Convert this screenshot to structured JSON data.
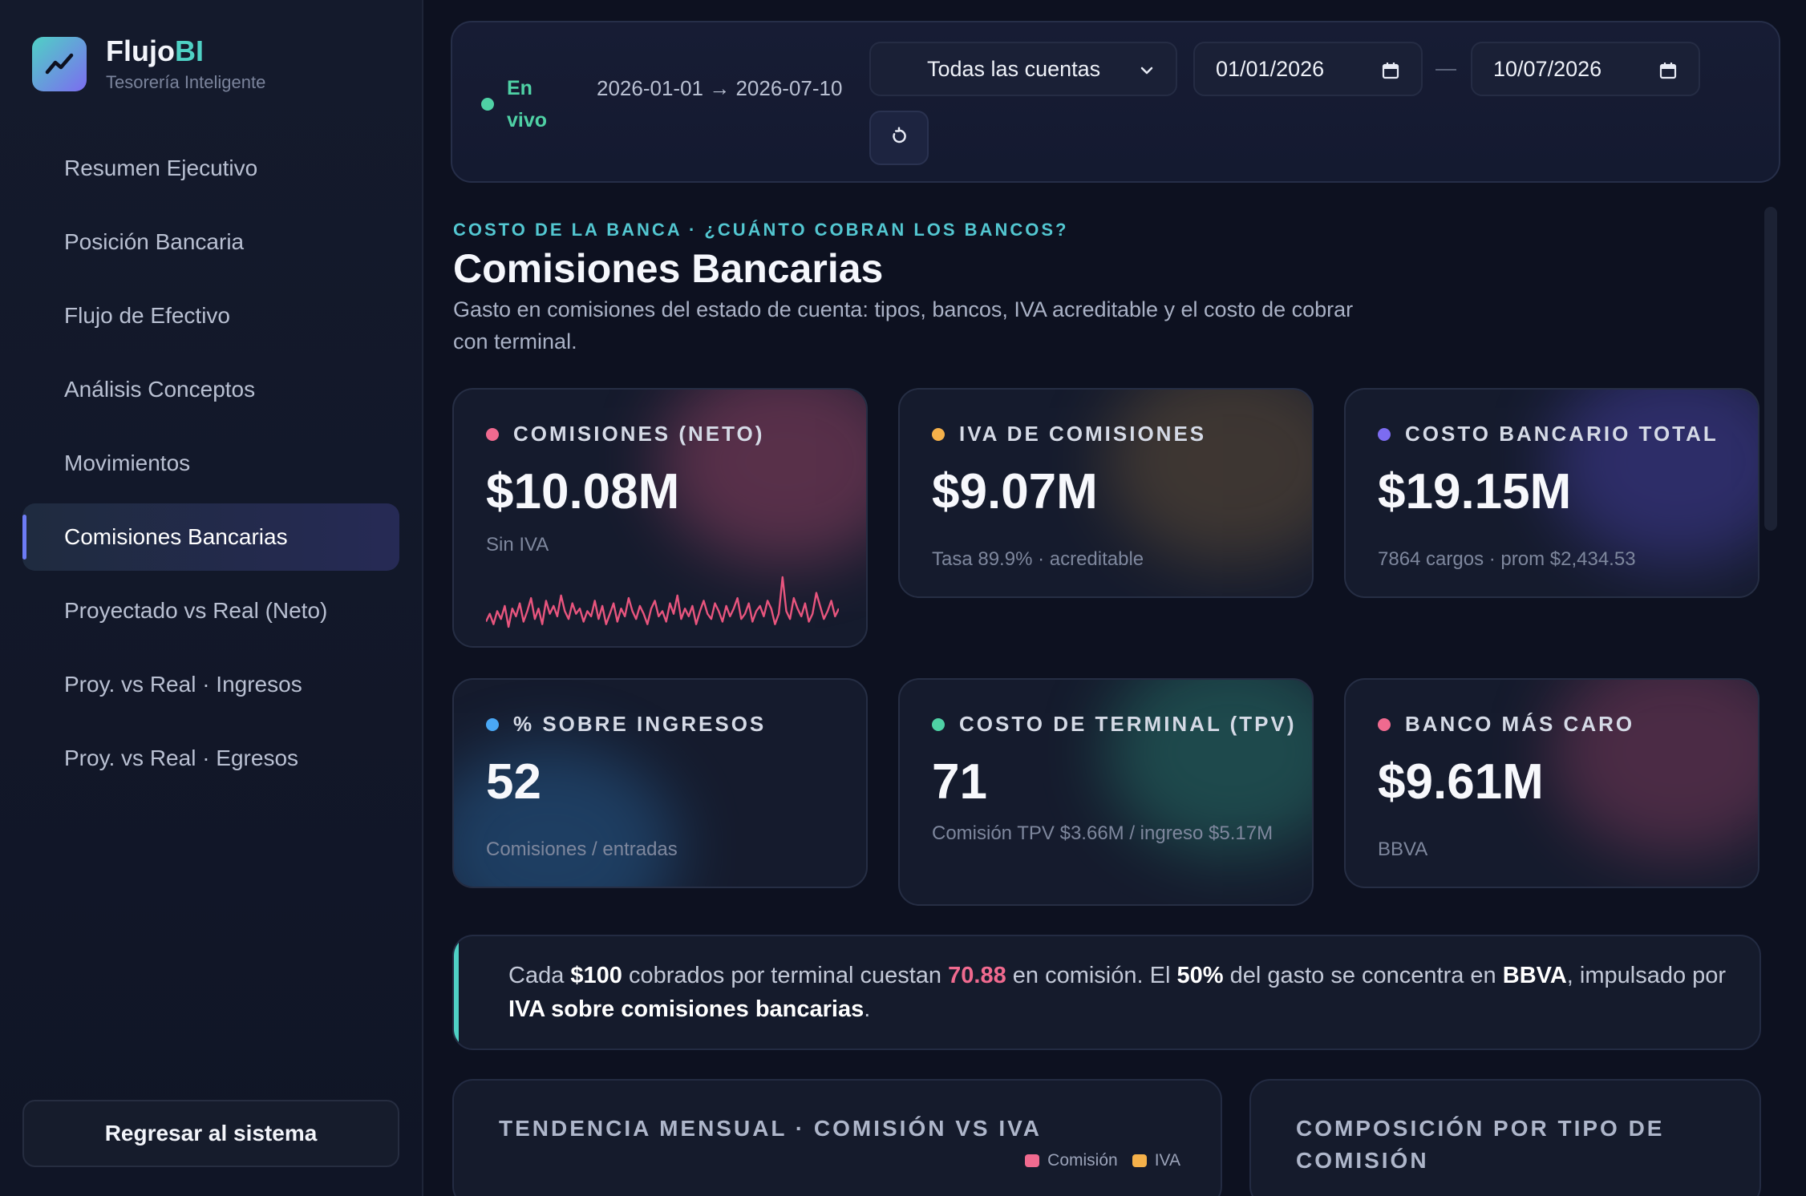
{
  "brand": {
    "name_main": "Flujo",
    "name_accent": "BI",
    "subtitle": "Tesorería Inteligente"
  },
  "sidebar": {
    "items": [
      {
        "label": "Resumen Ejecutivo",
        "active": false
      },
      {
        "label": "Posición Bancaria",
        "active": false
      },
      {
        "label": "Flujo de Efectivo",
        "active": false
      },
      {
        "label": "Análisis Conceptos",
        "active": false
      },
      {
        "label": "Movimientos",
        "active": false
      },
      {
        "label": "Comisiones Bancarias",
        "active": true
      },
      {
        "label": "Proyectado vs Real (Neto)",
        "active": false
      },
      {
        "label": "Proy. vs Real · Ingresos",
        "active": false
      },
      {
        "label": "Proy. vs Real · Egresos",
        "active": false
      }
    ],
    "back_label": "Regresar al sistema"
  },
  "filters": {
    "live_label": "En vivo",
    "range_text": "2026-01-01 → 2026-07-10",
    "account_select": "Todas las cuentas",
    "date_from": "01/01/2026",
    "date_to": "10/07/2026"
  },
  "header": {
    "kicker": "COSTO DE LA BANCA · ¿CUÁNTO COBRAN LOS BANCOS?",
    "title": "Comisiones Bancarias",
    "description": "Gasto en comisiones del estado de cuenta: tipos, bancos, IVA acreditable y el costo de cobrar con terminal."
  },
  "kpis": [
    {
      "label": "COMISIONES (NETO)",
      "value": "$10.08M",
      "sub": "Sin IVA",
      "dot": "#f06a8f"
    },
    {
      "label": "IVA DE COMISIONES",
      "value": "$9.07M",
      "sub": "Tasa 89.9% · acreditable",
      "dot": "#f5b14a"
    },
    {
      "label": "COSTO BANCARIO TOTAL",
      "value": "$19.15M",
      "sub": "7864 cargos · prom $2,434.53",
      "dot": "#7c6cf0"
    },
    {
      "label": "% SOBRE INGRESOS",
      "value": "52",
      "sub": "Comisiones / entradas",
      "dot": "#4aa8f5"
    },
    {
      "label": "COSTO DE TERMINAL (TPV)",
      "value": "71",
      "sub": "Comisión TPV $3.66M / ingreso $5.17M",
      "dot": "#4fd1a5"
    },
    {
      "label": "BANCO MÁS CARO",
      "value": "$9.61M",
      "sub": "BBVA",
      "dot": "#f06a8f"
    }
  ],
  "sparkline": {
    "color": "#e8557e",
    "values": [
      5,
      8,
      4,
      9,
      6,
      11,
      3,
      10,
      7,
      12,
      5,
      9,
      14,
      6,
      10,
      4,
      13,
      8,
      11,
      7,
      15,
      9,
      6,
      12,
      8,
      10,
      5,
      9,
      7,
      13,
      6,
      11,
      4,
      8,
      12,
      5,
      10,
      7,
      14,
      9,
      6,
      11,
      8,
      4,
      10,
      13,
      7,
      9,
      5,
      12,
      8,
      15,
      6,
      10,
      7,
      11,
      4,
      9,
      13,
      8,
      6,
      12,
      9,
      5,
      11,
      7,
      10,
      14,
      6,
      8,
      12,
      5,
      9,
      11,
      7,
      13,
      10,
      4,
      8,
      22,
      9,
      6,
      14,
      10,
      7,
      12,
      5,
      8,
      16,
      11,
      6,
      9,
      13,
      7,
      10
    ]
  },
  "insight": {
    "p1": "Cada ",
    "b1": "$100",
    "p2": " cobrados por terminal cuestan ",
    "pink1": "70.88",
    "p3": " en comisión. El ",
    "b2": "50%",
    "p4": " del gasto se concentra en ",
    "b3": "BBVA",
    "p5": ", impulsado por ",
    "b4": "IVA sobre comisiones bancarias",
    "p6": "."
  },
  "panels": {
    "trend_title": "TENDENCIA MENSUAL · COMISIÓN VS IVA",
    "legend": [
      {
        "label": "Comisión",
        "color": "#f06a8f"
      },
      {
        "label": "IVA",
        "color": "#f5b14a"
      }
    ],
    "composition_title": "COMPOSICIÓN POR TIPO DE COMISIÓN"
  }
}
